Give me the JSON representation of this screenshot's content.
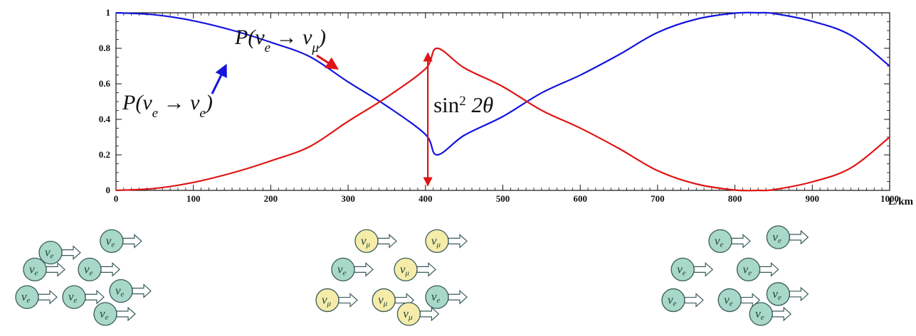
{
  "chart_data": {
    "type": "line",
    "title": "",
    "xlabel": "L/km",
    "ylabel": "",
    "xlim": [
      0,
      1000
    ],
    "ylim": [
      0,
      1
    ],
    "x_ticks": [
      0,
      100,
      200,
      300,
      400,
      500,
      600,
      700,
      800,
      900,
      1000
    ],
    "x_tick_labels": [
      "0",
      "100",
      "200",
      "300",
      "400",
      "500",
      "600",
      "700",
      "800",
      "900",
      "1000"
    ],
    "y_ticks": [
      0,
      0.2,
      0.4,
      0.6,
      0.8,
      1
    ],
    "y_tick_labels": [
      "0",
      "0.2",
      "0.4",
      "0.6",
      "0.8",
      "1"
    ],
    "grid": false,
    "series": [
      {
        "name": "P(νe → νe)",
        "color": "#1414dc",
        "x": [
          0,
          50,
          100,
          150,
          200,
          250,
          300,
          350,
          400,
          415,
          450,
          500,
          550,
          600,
          650,
          700,
          750,
          800,
          830,
          850,
          900,
          950,
          1000
        ],
        "y": [
          1.0,
          0.989,
          0.955,
          0.902,
          0.834,
          0.754,
          0.611,
          0.475,
          0.315,
          0.2,
          0.31,
          0.416,
          0.549,
          0.649,
          0.764,
          0.889,
          0.964,
          0.998,
          1.0,
          0.996,
          0.952,
          0.873,
          0.7
        ]
      },
      {
        "name": "P(νe → νμ)",
        "color": "#e01414",
        "x": [
          0,
          50,
          100,
          150,
          200,
          250,
          300,
          350,
          400,
          415,
          450,
          500,
          550,
          600,
          650,
          700,
          750,
          800,
          830,
          850,
          900,
          950,
          1000
        ],
        "y": [
          0.0,
          0.011,
          0.045,
          0.098,
          0.166,
          0.246,
          0.389,
          0.525,
          0.685,
          0.8,
          0.69,
          0.584,
          0.451,
          0.351,
          0.236,
          0.111,
          0.036,
          0.002,
          0.0,
          0.004,
          0.048,
          0.127,
          0.3
        ]
      }
    ],
    "annotations": [
      {
        "id": "pee",
        "series_index": 0,
        "main": "P(",
        "nu1": "ν",
        "sub1": "e",
        "arrow": " → ",
        "nu2": "ν",
        "sub2": "e",
        "close": ")"
      },
      {
        "id": "pemu",
        "series_index": 1,
        "main": "P(",
        "nu1": "ν",
        "sub1": "e",
        "arrow": " → ",
        "nu2": "ν",
        "sub2": "μ",
        "close": ")"
      },
      {
        "id": "amplitude",
        "text_main": "sin",
        "text_sup": "2",
        "text_rest": " 2θ",
        "x": 415,
        "y_from": 0.0,
        "y_to": 0.8
      }
    ]
  },
  "neutrino_groups": [
    {
      "name": "group-start",
      "particles": [
        {
          "flavor": "e",
          "bx": 0.15,
          "by": 0.2
        },
        {
          "flavor": "e",
          "bx": 0.54,
          "by": 0.05
        },
        {
          "flavor": "e",
          "bx": 0.05,
          "by": 0.42
        },
        {
          "flavor": "e",
          "bx": 0.4,
          "by": 0.42
        },
        {
          "flavor": "e",
          "bx": 0.0,
          "by": 0.78
        },
        {
          "flavor": "e",
          "bx": 0.3,
          "by": 0.78
        },
        {
          "flavor": "e",
          "bx": 0.6,
          "by": 0.7
        },
        {
          "flavor": "e",
          "bx": 0.5,
          "by": 1.0
        }
      ]
    },
    {
      "name": "group-middle",
      "particles": [
        {
          "flavor": "μ",
          "bx": 0.25,
          "by": 0.05
        },
        {
          "flavor": "μ",
          "bx": 0.7,
          "by": 0.05
        },
        {
          "flavor": "e",
          "bx": 0.1,
          "by": 0.42
        },
        {
          "flavor": "μ",
          "bx": 0.5,
          "by": 0.42
        },
        {
          "flavor": "μ",
          "bx": 0.0,
          "by": 0.82
        },
        {
          "flavor": "μ",
          "bx": 0.36,
          "by": 0.82
        },
        {
          "flavor": "e",
          "bx": 0.7,
          "by": 0.78
        },
        {
          "flavor": "μ",
          "bx": 0.52,
          "by": 1.0
        }
      ]
    },
    {
      "name": "group-end",
      "particles": [
        {
          "flavor": "e",
          "bx": 0.3,
          "by": 0.05
        },
        {
          "flavor": "e",
          "bx": 0.67,
          "by": 0.0
        },
        {
          "flavor": "e",
          "bx": 0.06,
          "by": 0.42
        },
        {
          "flavor": "e",
          "bx": 0.48,
          "by": 0.42
        },
        {
          "flavor": "e",
          "bx": 0.0,
          "by": 0.82
        },
        {
          "flavor": "e",
          "bx": 0.36,
          "by": 0.82
        },
        {
          "flavor": "e",
          "bx": 0.67,
          "by": 0.74
        },
        {
          "flavor": "e",
          "bx": 0.56,
          "by": 1.0
        }
      ]
    }
  ],
  "colors": {
    "axis": "#111111",
    "nu_e_fill": "#a8d8c8",
    "nu_mu_fill": "#f4eca8",
    "particle_stroke": "#3a5a5a",
    "arrow_blue": "#1414dc",
    "arrow_red": "#e01414"
  }
}
